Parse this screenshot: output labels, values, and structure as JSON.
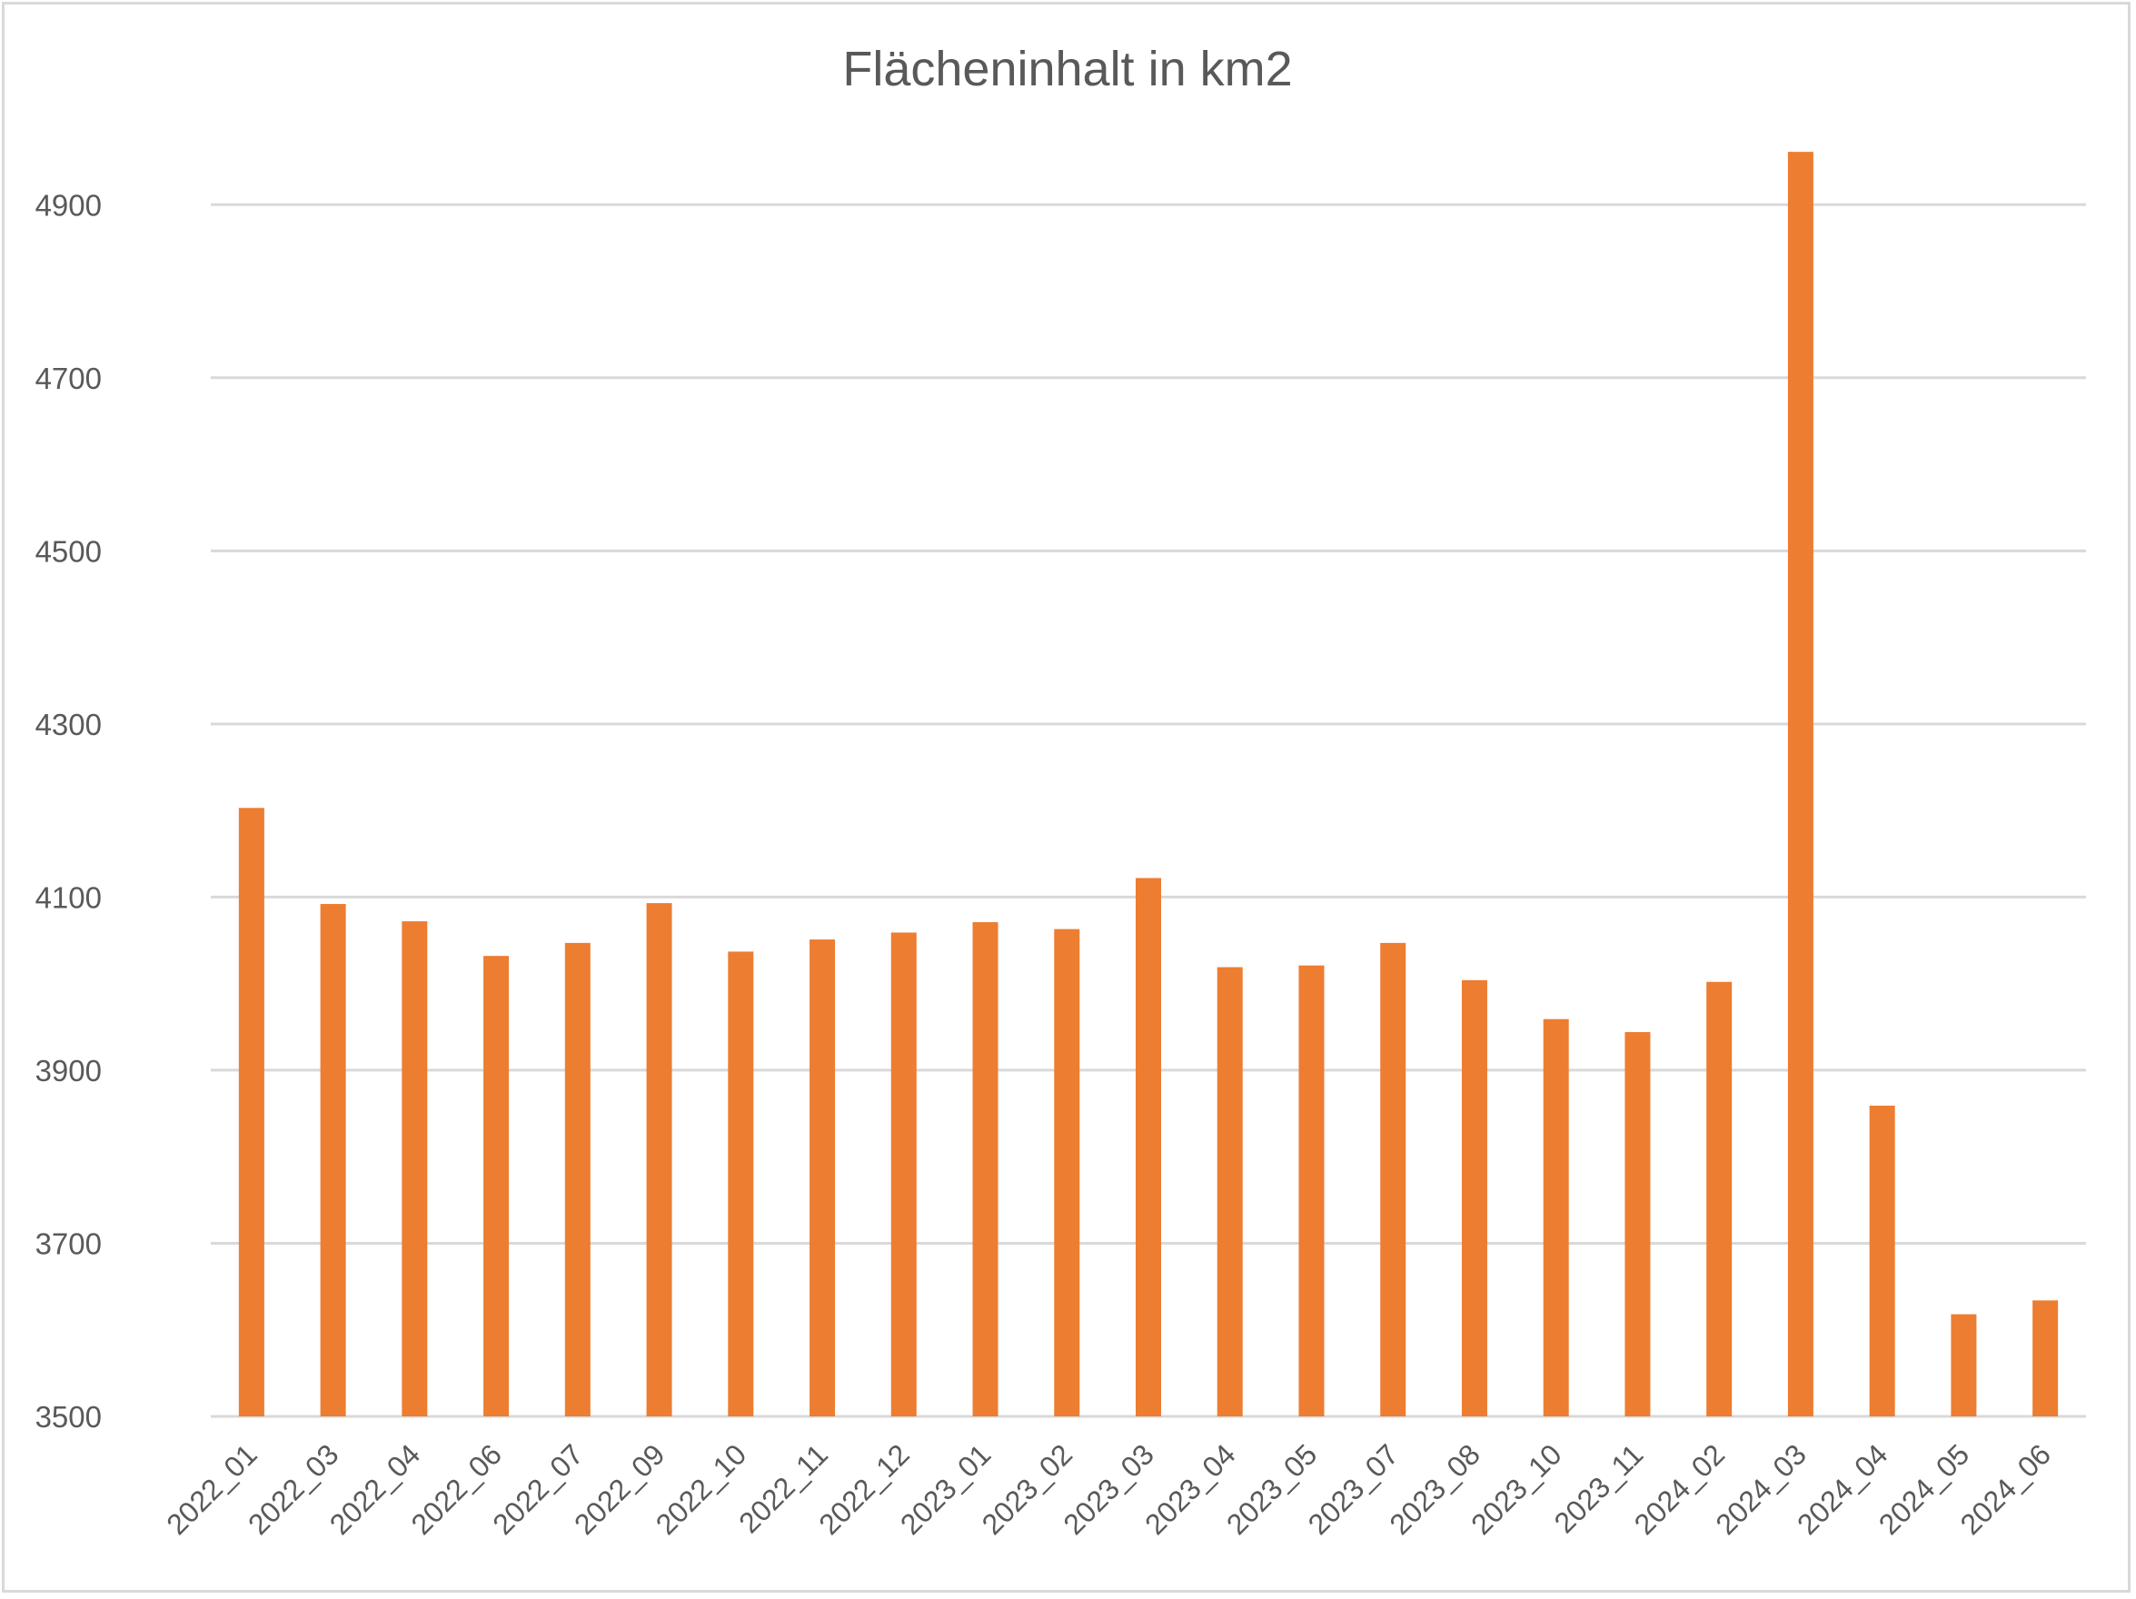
{
  "chart_data": {
    "type": "bar",
    "title": "Flächeninhalt in km2",
    "xlabel": "",
    "ylabel": "",
    "ylim": [
      3500,
      5000
    ],
    "yticks": [
      3500,
      3700,
      3900,
      4100,
      4300,
      4500,
      4700,
      4900
    ],
    "grid": true,
    "legend": "none",
    "bar_color": "#ED7D31",
    "categories": [
      "2022_01",
      "2022_03",
      "2022_04",
      "2022_06",
      "2022_07",
      "2022_09",
      "2022_10",
      "2022_11",
      "2022_12",
      "2023_01",
      "2023_02",
      "2023_03",
      "2023_04",
      "2023_05",
      "2023_07",
      "2023_08",
      "2023_10",
      "2023_11",
      "2024_02",
      "2024_03",
      "2024_04",
      "2024_05",
      "2024_06"
    ],
    "values": [
      4203,
      4092,
      4072,
      4032,
      4047,
      4093,
      4037,
      4051,
      4059,
      4071,
      4063,
      4122,
      4019,
      4021,
      4047,
      4004,
      3959,
      3944,
      4002,
      4961,
      3859,
      3618,
      3634
    ]
  }
}
